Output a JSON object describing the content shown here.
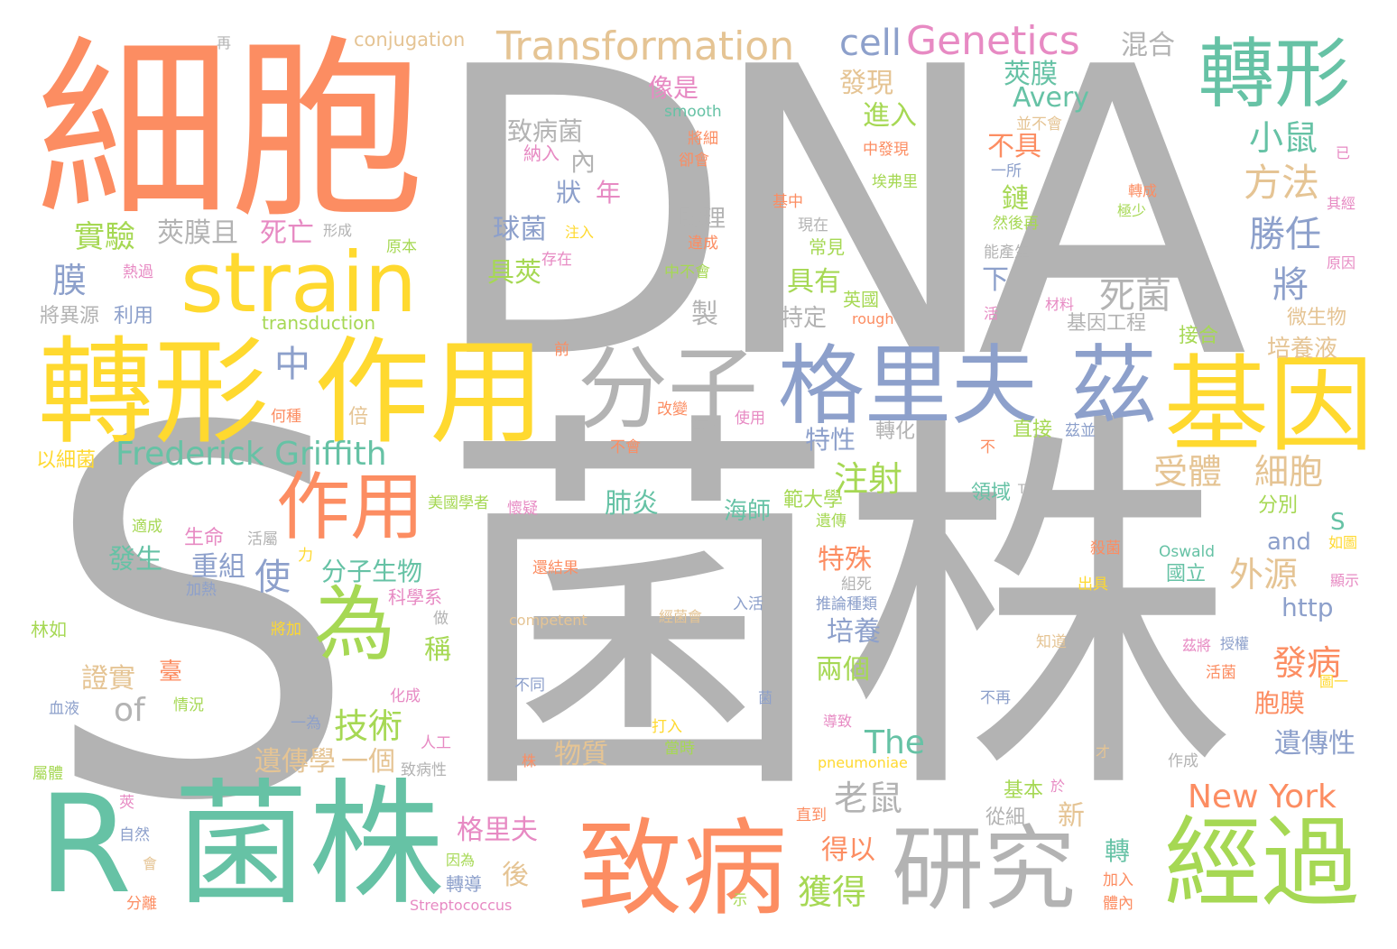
{
  "words": [
    {
      "text": "DNA",
      "color": "#b3b3b3"
    },
    {
      "text": "菌株",
      "color": "#b3b3b3"
    },
    {
      "text": "S",
      "color": "#b3b3b3"
    },
    {
      "text": "細胞",
      "color": "#fc8d62"
    },
    {
      "text": "R",
      "color": "#66c2a5"
    },
    {
      "text": "菌株",
      "color": "#66c2a5"
    },
    {
      "text": "轉形",
      "color": "#ffd92f"
    },
    {
      "text": "作用",
      "color": "#ffd92f"
    },
    {
      "text": "strain",
      "color": "#ffd92f"
    },
    {
      "text": "分子",
      "color": "#b3b3b3"
    },
    {
      "text": "格里夫",
      "color": "#8da0cb"
    },
    {
      "text": "茲",
      "color": "#8da0cb"
    },
    {
      "text": "基因",
      "color": "#ffd92f"
    },
    {
      "text": "轉形",
      "color": "#66c2a5"
    },
    {
      "text": "致病",
      "color": "#fc8d62"
    },
    {
      "text": "研究",
      "color": "#b3b3b3"
    },
    {
      "text": "經過",
      "color": "#a6d854"
    },
    {
      "text": "作用",
      "color": "#fc8d62"
    },
    {
      "text": "為",
      "color": "#a6d854"
    },
    {
      "text": "Transformation",
      "color": "#e5c494"
    },
    {
      "text": "Genetics",
      "color": "#e78ac3"
    },
    {
      "text": "cell",
      "color": "#8da0cb"
    },
    {
      "text": "Frederick Griffith",
      "color": "#66c2a5"
    },
    {
      "text": "New York",
      "color": "#fc8d62"
    },
    {
      "text": "conjugation",
      "color": "#e5c494"
    },
    {
      "text": "再",
      "color": "#b3b3b3"
    },
    {
      "text": "混合",
      "color": "#b3b3b3"
    },
    {
      "text": "莢膜",
      "color": "#66c2a5"
    },
    {
      "text": "Avery",
      "color": "#66c2a5"
    },
    {
      "text": "發現",
      "color": "#e5c494"
    },
    {
      "text": "像是",
      "color": "#e78ac3"
    },
    {
      "text": "smooth",
      "color": "#66c2a5"
    },
    {
      "text": "進入",
      "color": "#a6d854"
    },
    {
      "text": "致病菌",
      "color": "#b3b3b3"
    },
    {
      "text": "將細",
      "color": "#fc8d62"
    },
    {
      "text": "並不會",
      "color": "#e5c494"
    },
    {
      "text": "小鼠",
      "color": "#66c2a5"
    },
    {
      "text": "不具",
      "color": "#fc8d62"
    },
    {
      "text": "內",
      "color": "#b3b3b3"
    },
    {
      "text": "納入",
      "color": "#e78ac3"
    },
    {
      "text": "卻會",
      "color": "#fc8d62"
    },
    {
      "text": "中發現",
      "color": "#fc8d62"
    },
    {
      "text": "已",
      "color": "#e78ac3"
    },
    {
      "text": "方法",
      "color": "#e5c494"
    },
    {
      "text": "狀",
      "color": "#8da0cb"
    },
    {
      "text": "年",
      "color": "#e78ac3"
    },
    {
      "text": "埃弗里",
      "color": "#a6d854"
    },
    {
      "text": "一所",
      "color": "#8da0cb"
    },
    {
      "text": "鏈",
      "color": "#a6d854"
    },
    {
      "text": "轉成",
      "color": "#fc8d62"
    },
    {
      "text": "實驗",
      "color": "#a6d854"
    },
    {
      "text": "莢膜且",
      "color": "#b3b3b3"
    },
    {
      "text": "助理",
      "color": "#b3b3b3"
    },
    {
      "text": "基中",
      "color": "#fc8d62"
    },
    {
      "text": "然後再",
      "color": "#a6d854"
    },
    {
      "text": "極少",
      "color": "#a6d854"
    },
    {
      "text": "其經",
      "color": "#e78ac3"
    },
    {
      "text": "勝任",
      "color": "#8da0cb"
    },
    {
      "text": "死亡",
      "color": "#e78ac3"
    },
    {
      "text": "形成",
      "color": "#b3b3b3"
    },
    {
      "text": "球菌",
      "color": "#8da0cb"
    },
    {
      "text": "注入",
      "color": "#ffd92f"
    },
    {
      "text": "現在",
      "color": "#b3b3b3"
    },
    {
      "text": "違成",
      "color": "#fc8d62"
    },
    {
      "text": "原本",
      "color": "#a6d854"
    },
    {
      "text": "能產生",
      "color": "#b3b3b3"
    },
    {
      "text": "原因",
      "color": "#e78ac3"
    },
    {
      "text": "膜",
      "color": "#8da0cb"
    },
    {
      "text": "熱過",
      "color": "#e78ac3"
    },
    {
      "text": "具莢",
      "color": "#a6d854"
    },
    {
      "text": "存在",
      "color": "#e78ac3"
    },
    {
      "text": "中不會",
      "color": "#a6d854"
    },
    {
      "text": "具有",
      "color": "#a6d854"
    },
    {
      "text": "常見",
      "color": "#a6d854"
    },
    {
      "text": "死菌",
      "color": "#b3b3b3"
    },
    {
      "text": "將",
      "color": "#8da0cb"
    },
    {
      "text": "英國",
      "color": "#a6d854"
    },
    {
      "text": "rough",
      "color": "#fc8d62"
    },
    {
      "text": "下",
      "color": "#8da0cb"
    },
    {
      "text": "活",
      "color": "#e78ac3"
    },
    {
      "text": "材料",
      "color": "#e78ac3"
    },
    {
      "text": "微生物",
      "color": "#e5c494"
    },
    {
      "text": "將異源",
      "color": "#b3b3b3"
    },
    {
      "text": "利用",
      "color": "#8da0cb"
    },
    {
      "text": "transduction",
      "color": "#a6d854"
    },
    {
      "text": "製",
      "color": "#b3b3b3"
    },
    {
      "text": "特定",
      "color": "#b3b3b3"
    },
    {
      "text": "基因工程",
      "color": "#b3b3b3"
    },
    {
      "text": "接合",
      "color": "#a6d854"
    },
    {
      "text": "培養液",
      "color": "#e5c494"
    },
    {
      "text": "前",
      "color": "#fc8d62"
    },
    {
      "text": "中",
      "color": "#8da0cb"
    },
    {
      "text": "何種",
      "color": "#fc8d62"
    },
    {
      "text": "倍",
      "color": "#e5c494"
    },
    {
      "text": "改變",
      "color": "#fc8d62"
    },
    {
      "text": "使用",
      "color": "#e78ac3"
    },
    {
      "text": "直接",
      "color": "#a6d854"
    },
    {
      "text": "茲並",
      "color": "#8da0cb"
    },
    {
      "text": "特性",
      "color": "#8da0cb"
    },
    {
      "text": "轉化",
      "color": "#b3b3b3"
    },
    {
      "text": "受體",
      "color": "#e5c494"
    },
    {
      "text": "細胞",
      "color": "#e5c494"
    },
    {
      "text": "以細菌",
      "color": "#ffd92f"
    },
    {
      "text": "不會",
      "color": "#fc8d62"
    },
    {
      "text": "不",
      "color": "#fc8d62"
    },
    {
      "text": "注射",
      "color": "#a6d854"
    },
    {
      "text": "肺炎",
      "color": "#66c2a5"
    },
    {
      "text": "範大學",
      "color": "#a6d854"
    },
    {
      "text": "領域",
      "color": "#66c2a5"
    },
    {
      "text": "T",
      "color": "#b3b3b3"
    },
    {
      "text": "分別",
      "color": "#a6d854"
    },
    {
      "text": "美國學者",
      "color": "#a6d854"
    },
    {
      "text": "懷疑",
      "color": "#e78ac3"
    },
    {
      "text": "海師",
      "color": "#66c2a5"
    },
    {
      "text": "遺傳",
      "color": "#a6d854"
    },
    {
      "text": "S",
      "color": "#66c2a5"
    },
    {
      "text": "適成",
      "color": "#a6d854"
    },
    {
      "text": "生命",
      "color": "#e78ac3"
    },
    {
      "text": "活屬",
      "color": "#b3b3b3"
    },
    {
      "text": "殺菌",
      "color": "#fc8d62"
    },
    {
      "text": "and",
      "color": "#8da0cb"
    },
    {
      "text": "如圖",
      "color": "#ffd92f"
    },
    {
      "text": "發生",
      "color": "#66c2a5"
    },
    {
      "text": "重組",
      "color": "#8da0cb"
    },
    {
      "text": "力",
      "color": "#ffd92f"
    },
    {
      "text": "特殊",
      "color": "#fc8d62"
    },
    {
      "text": "組死",
      "color": "#b3b3b3"
    },
    {
      "text": "Oswald",
      "color": "#66c2a5"
    },
    {
      "text": "外源",
      "color": "#e5c494"
    },
    {
      "text": "使",
      "color": "#8da0cb"
    },
    {
      "text": "分子生物",
      "color": "#66c2a5"
    },
    {
      "text": "國立",
      "color": "#66c2a5"
    },
    {
      "text": "還結果",
      "color": "#fc8d62"
    },
    {
      "text": "出具",
      "color": "#ffd92f"
    },
    {
      "text": "顯示",
      "color": "#e78ac3"
    },
    {
      "text": "加熱",
      "color": "#8da0cb"
    },
    {
      "text": "科學系",
      "color": "#e78ac3"
    },
    {
      "text": "入活",
      "color": "#8da0cb"
    },
    {
      "text": "推論種類",
      "color": "#8da0cb"
    },
    {
      "text": "http",
      "color": "#8da0cb"
    },
    {
      "text": "林如",
      "color": "#a6d854"
    },
    {
      "text": "將加",
      "color": "#ffd92f"
    },
    {
      "text": "做",
      "color": "#b3b3b3"
    },
    {
      "text": "competent",
      "color": "#e5c494"
    },
    {
      "text": "經菌會",
      "color": "#e5c494"
    },
    {
      "text": "培養",
      "color": "#8da0cb"
    },
    {
      "text": "稱",
      "color": "#a6d854"
    },
    {
      "text": "茲將",
      "color": "#e78ac3"
    },
    {
      "text": "授權",
      "color": "#8da0cb"
    },
    {
      "text": "知道",
      "color": "#e5c494"
    },
    {
      "text": "證實",
      "color": "#e5c494"
    },
    {
      "text": "臺",
      "color": "#fc8d62"
    },
    {
      "text": "兩個",
      "color": "#a6d854"
    },
    {
      "text": "發病",
      "color": "#fc8d62"
    },
    {
      "text": "活菌",
      "color": "#fc8d62"
    },
    {
      "text": "of",
      "color": "#b3b3b3"
    },
    {
      "text": "不同",
      "color": "#8da0cb"
    },
    {
      "text": "菌",
      "color": "#8da0cb"
    },
    {
      "text": "圖一",
      "color": "#ffd92f"
    },
    {
      "text": "胞膜",
      "color": "#fc8d62"
    },
    {
      "text": "血液",
      "color": "#8da0cb"
    },
    {
      "text": "情況",
      "color": "#a6d854"
    },
    {
      "text": "化成",
      "color": "#e78ac3"
    },
    {
      "text": "技術",
      "color": "#a6d854"
    },
    {
      "text": "不再",
      "color": "#8da0cb"
    },
    {
      "text": "打入",
      "color": "#ffd92f"
    },
    {
      "text": "導致",
      "color": "#e78ac3"
    },
    {
      "text": "一為",
      "color": "#8da0cb"
    },
    {
      "text": "The",
      "color": "#66c2a5"
    },
    {
      "text": "遺傳性",
      "color": "#8da0cb"
    },
    {
      "text": "人工",
      "color": "#e78ac3"
    },
    {
      "text": "株",
      "color": "#fc8d62"
    },
    {
      "text": "當時",
      "color": "#a6d854"
    },
    {
      "text": "物質",
      "color": "#e5c494"
    },
    {
      "text": "才",
      "color": "#e5c494"
    },
    {
      "text": "遺傳學",
      "color": "#e5c494"
    },
    {
      "text": "一個",
      "color": "#e5c494"
    },
    {
      "text": "作成",
      "color": "#b3b3b3"
    },
    {
      "text": "屬體",
      "color": "#a6d854"
    },
    {
      "text": "致病性",
      "color": "#b3b3b3"
    },
    {
      "text": "pneumoniae",
      "color": "#ffd92f"
    },
    {
      "text": "老鼠",
      "color": "#b3b3b3"
    },
    {
      "text": "基本",
      "color": "#a6d854"
    },
    {
      "text": "於",
      "color": "#e78ac3"
    },
    {
      "text": "莢",
      "color": "#e78ac3"
    },
    {
      "text": "直到",
      "color": "#fc8d62"
    },
    {
      "text": "從細",
      "color": "#b3b3b3"
    },
    {
      "text": "新",
      "color": "#e5c494"
    },
    {
      "text": "自然",
      "color": "#8da0cb"
    },
    {
      "text": "格里夫",
      "color": "#e78ac3"
    },
    {
      "text": "得以",
      "color": "#fc8d62"
    },
    {
      "text": "後",
      "color": "#e5c494"
    },
    {
      "text": "轉",
      "color": "#66c2a5"
    },
    {
      "text": "因為",
      "color": "#a6d854"
    },
    {
      "text": "會",
      "color": "#e5c494"
    },
    {
      "text": "轉導",
      "color": "#8da0cb"
    },
    {
      "text": "獲得",
      "color": "#a6d854"
    },
    {
      "text": "示",
      "color": "#a6d854"
    },
    {
      "text": "加入",
      "color": "#fc8d62"
    },
    {
      "text": "分離",
      "color": "#fc8d62"
    },
    {
      "text": "Streptococcus",
      "color": "#e78ac3"
    },
    {
      "text": "體內",
      "color": "#fc8d62"
    }
  ]
}
